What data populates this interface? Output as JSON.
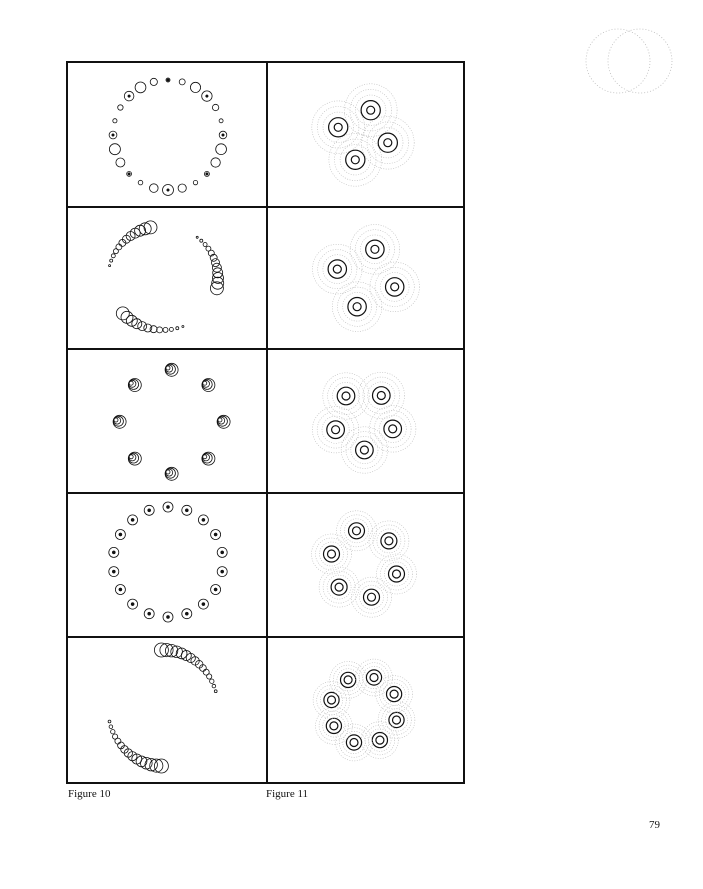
{
  "captions": {
    "left": "Figure 10",
    "right": "Figure 11"
  },
  "page_number": "79",
  "figure_grid": {
    "rows": 5,
    "columns": 2,
    "left_column_figure": "Figure 10",
    "right_column_figure": "Figure 11",
    "rows_content": [
      {
        "left": {
          "circles": 24,
          "arrangement": "full-ring"
        },
        "right": {
          "centers": 4
        }
      },
      {
        "left": {
          "circles": 36,
          "arrangement": "three-arcs"
        },
        "right": {
          "centers": 4
        }
      },
      {
        "left": {
          "circles": 8,
          "arrangement": "clusters"
        },
        "right": {
          "centers": 5
        }
      },
      {
        "left": {
          "circles": 18,
          "arrangement": "full-ring"
        },
        "right": {
          "centers": 6
        }
      },
      {
        "left": {
          "circles": 30,
          "arrangement": "two-arcs"
        },
        "right": {
          "centers": 8
        }
      }
    ]
  },
  "colors": {
    "ink": "#111111",
    "paper": "#ffffff",
    "faint": "#b8b8b8"
  }
}
